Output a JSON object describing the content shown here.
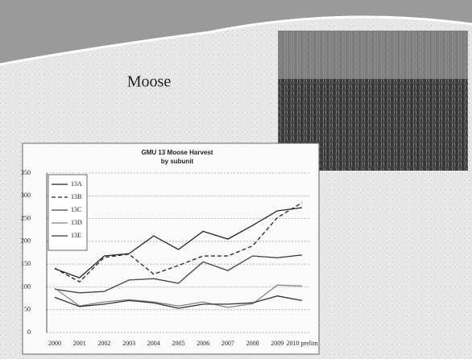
{
  "slide": {
    "title": "Moose"
  },
  "chart_data": {
    "type": "line",
    "title": [
      "GMU 13 Moose Harvest",
      "by subunit"
    ],
    "categories": [
      "2000",
      "2001",
      "2002",
      "2003",
      "2004",
      "2005",
      "2006",
      "2007",
      "2008",
      "2009",
      "2010 prelim"
    ],
    "series": [
      {
        "name": "13A",
        "color": "#222222",
        "dash": "solid",
        "values": [
          140,
          120,
          168,
          173,
          212,
          182,
          222,
          205,
          235,
          267,
          274
        ]
      },
      {
        "name": "13B",
        "color": "#222222",
        "dash": "dashed",
        "values": [
          141,
          111,
          165,
          172,
          128,
          147,
          168,
          168,
          190,
          252,
          285
        ]
      },
      {
        "name": "13C",
        "color": "#444444",
        "dash": "solid",
        "values": [
          95,
          87,
          90,
          115,
          118,
          108,
          155,
          136,
          168,
          164,
          170
        ]
      },
      {
        "name": "13D",
        "color": "#888888",
        "dash": "solid",
        "values": [
          97,
          58,
          67,
          72,
          67,
          58,
          67,
          55,
          63,
          104,
          102
        ]
      },
      {
        "name": "13E",
        "color": "#333333",
        "dash": "solid",
        "values": [
          77,
          57,
          62,
          70,
          65,
          53,
          62,
          62,
          65,
          80,
          70
        ]
      }
    ],
    "ylim": [
      0,
      350
    ],
    "yticks": [
      0,
      50,
      100,
      150,
      200,
      250,
      300,
      350
    ],
    "grid": true,
    "legend": "top-left"
  }
}
